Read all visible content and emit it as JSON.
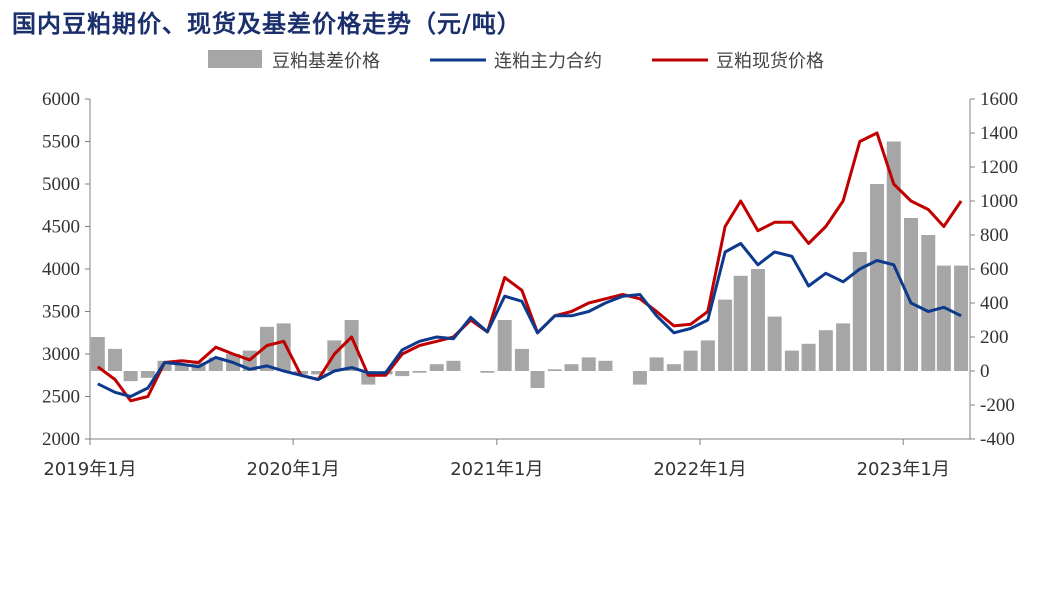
{
  "title": "国内豆粕期价、现货及基差价格走势（元/吨）",
  "colors": {
    "basis": "#a6a6a6",
    "futures": "#0d3a8c",
    "spot": "#c00000",
    "axis": "#808080",
    "title": "#1a2f6b"
  },
  "chart_data": {
    "type": "line",
    "title": "国内豆粕期价、现货及基差价格走势（元/吨）",
    "x_start": "2019-01-01",
    "x_end": "2023-05-01",
    "x_tick_labels": [
      "2019年1月",
      "2020年1月",
      "2021年1月",
      "2022年1月",
      "2023年1月"
    ],
    "left_axis": {
      "ylim": [
        2000,
        6000
      ],
      "ticks": [
        2000,
        2500,
        3000,
        3500,
        4000,
        4500,
        5000,
        5500,
        6000
      ]
    },
    "right_axis": {
      "ylim": [
        -400,
        1600
      ],
      "ticks": [
        -400,
        -200,
        0,
        200,
        400,
        600,
        800,
        1000,
        1200,
        1400,
        1600
      ]
    },
    "legend": {
      "position": "top",
      "entries": [
        "豆粕基差价格",
        "连粕主力合约",
        "豆粕现货价格"
      ]
    },
    "series": [
      {
        "name": "豆粕基差价格",
        "type": "bar",
        "axis": "right",
        "x": [
          "2019-01",
          "2019-02",
          "2019-03",
          "2019-04",
          "2019-05",
          "2019-06",
          "2019-07",
          "2019-08",
          "2019-09",
          "2019-10",
          "2019-11",
          "2019-12",
          "2020-01",
          "2020-02",
          "2020-03",
          "2020-04",
          "2020-05",
          "2020-06",
          "2020-07",
          "2020-08",
          "2020-09",
          "2020-10",
          "2020-11",
          "2020-12",
          "2021-01",
          "2021-02",
          "2021-03",
          "2021-04",
          "2021-05",
          "2021-06",
          "2021-07",
          "2021-08",
          "2021-09",
          "2021-10",
          "2021-11",
          "2021-12",
          "2022-01",
          "2022-02",
          "2022-03",
          "2022-04",
          "2022-05",
          "2022-06",
          "2022-07",
          "2022-08",
          "2022-09",
          "2022-10",
          "2022-11",
          "2022-12",
          "2023-01",
          "2023-02",
          "2023-03",
          "2023-04"
        ],
        "values": [
          200,
          130,
          -60,
          -40,
          60,
          40,
          50,
          80,
          100,
          120,
          260,
          280,
          -20,
          -20,
          180,
          300,
          -80,
          -20,
          -30,
          -10,
          40,
          60,
          0,
          -10,
          300,
          130,
          -100,
          10,
          40,
          80,
          60,
          0,
          -80,
          80,
          40,
          120,
          180,
          420,
          560,
          600,
          320,
          120,
          160,
          240,
          280,
          700,
          1100,
          1350,
          900,
          800,
          620,
          620
        ]
      },
      {
        "name": "连粕主力合约",
        "type": "line",
        "axis": "left",
        "x": [
          "2019-01",
          "2019-02",
          "2019-03",
          "2019-04",
          "2019-05",
          "2019-06",
          "2019-07",
          "2019-08",
          "2019-09",
          "2019-10",
          "2019-11",
          "2019-12",
          "2020-01",
          "2020-02",
          "2020-03",
          "2020-04",
          "2020-05",
          "2020-06",
          "2020-07",
          "2020-08",
          "2020-09",
          "2020-10",
          "2020-11",
          "2020-12",
          "2021-01",
          "2021-02",
          "2021-03",
          "2021-04",
          "2021-05",
          "2021-06",
          "2021-07",
          "2021-08",
          "2021-09",
          "2021-10",
          "2021-11",
          "2021-12",
          "2022-01",
          "2022-02",
          "2022-03",
          "2022-04",
          "2022-05",
          "2022-06",
          "2022-07",
          "2022-08",
          "2022-09",
          "2022-10",
          "2022-11",
          "2022-12",
          "2023-01",
          "2023-02",
          "2023-03",
          "2023-04"
        ],
        "values": [
          2650,
          2550,
          2500,
          2600,
          2900,
          2880,
          2850,
          2960,
          2900,
          2820,
          2860,
          2800,
          2750,
          2700,
          2800,
          2840,
          2780,
          2780,
          3050,
          3150,
          3200,
          3180,
          3430,
          3260,
          3680,
          3620,
          3250,
          3450,
          3450,
          3500,
          3600,
          3680,
          3700,
          3450,
          3250,
          3300,
          3400,
          4200,
          4300,
          4050,
          4200,
          4150,
          3800,
          3950,
          3850,
          4000,
          4100,
          4050,
          3600,
          3500,
          3550,
          3450
        ]
      },
      {
        "name": "豆粕现货价格",
        "type": "line",
        "axis": "left",
        "x": [
          "2019-01",
          "2019-02",
          "2019-03",
          "2019-04",
          "2019-05",
          "2019-06",
          "2019-07",
          "2019-08",
          "2019-09",
          "2019-10",
          "2019-11",
          "2019-12",
          "2020-01",
          "2020-02",
          "2020-03",
          "2020-04",
          "2020-05",
          "2020-06",
          "2020-07",
          "2020-08",
          "2020-09",
          "2020-10",
          "2020-11",
          "2020-12",
          "2021-01",
          "2021-02",
          "2021-03",
          "2021-04",
          "2021-05",
          "2021-06",
          "2021-07",
          "2021-08",
          "2021-09",
          "2021-10",
          "2021-11",
          "2021-12",
          "2022-01",
          "2022-02",
          "2022-03",
          "2022-04",
          "2022-05",
          "2022-06",
          "2022-07",
          "2022-08",
          "2022-09",
          "2022-10",
          "2022-11",
          "2022-12",
          "2023-01",
          "2023-02",
          "2023-03",
          "2023-04"
        ],
        "values": [
          2850,
          2700,
          2450,
          2500,
          2900,
          2920,
          2900,
          3080,
          3000,
          2930,
          3100,
          3150,
          2750,
          2700,
          3000,
          3200,
          2750,
          2750,
          3000,
          3100,
          3150,
          3200,
          3400,
          3260,
          3900,
          3750,
          3250,
          3450,
          3500,
          3600,
          3650,
          3700,
          3650,
          3500,
          3330,
          3350,
          3500,
          4500,
          4800,
          4450,
          4550,
          4550,
          4300,
          4500,
          4800,
          5500,
          5600,
          5000,
          4800,
          4700,
          4500,
          4800
        ]
      }
    ]
  }
}
